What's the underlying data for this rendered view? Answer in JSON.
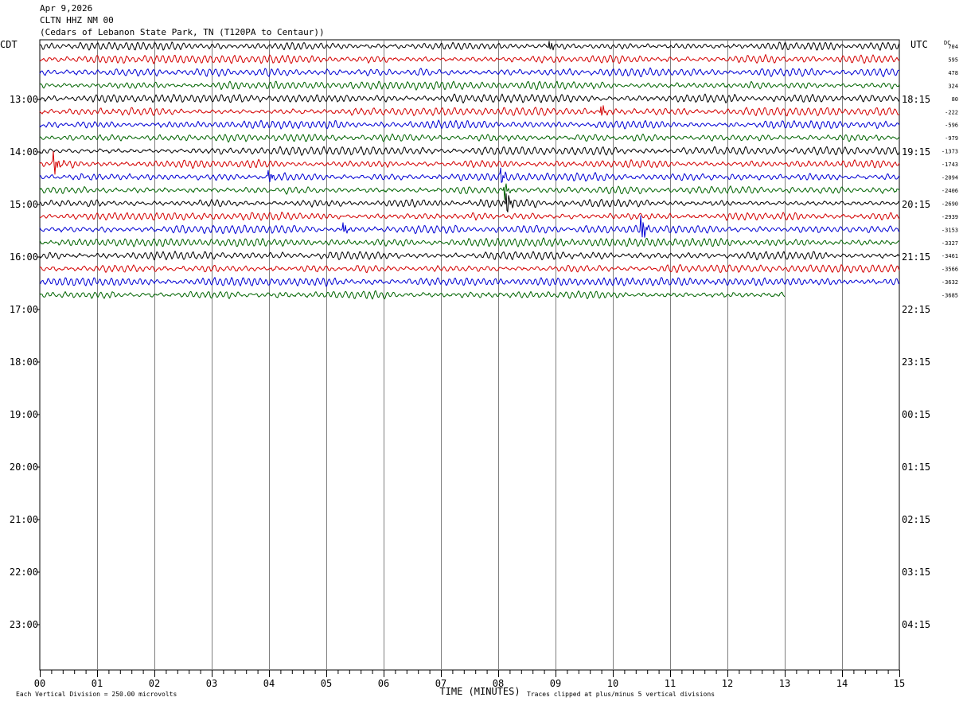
{
  "header": {
    "date": "Apr 9,2026",
    "station": "CLTN HHZ NM 00",
    "location": "(Cedars of Lebanon State Park, TN (T120PA to Centaur))"
  },
  "axis_labels": {
    "left_zone": "CDT",
    "right_zone": "UTC",
    "dc": "DC"
  },
  "footer": {
    "scale_note": "Each Vertical Division =  250.00 microvolts",
    "clip_note": "Traces clipped at plus/minus 5 vertical divisions"
  },
  "colors": {
    "trace_cycle": [
      "#000000",
      "#d40000",
      "#0000d4",
      "#006400"
    ],
    "grid": "#7f7f7f",
    "text": "#000000"
  },
  "chart_data": {
    "type": "line",
    "subtype": "seismic helicorder",
    "xlabel": "TIME (MINUTES)",
    "x_ticks": [
      "00",
      "01",
      "02",
      "03",
      "04",
      "05",
      "06",
      "07",
      "08",
      "09",
      "10",
      "11",
      "12",
      "13",
      "14",
      "15"
    ],
    "xlim": [
      0,
      15
    ],
    "grid": true,
    "left_hour_labels": [
      "13:00",
      "14:00",
      "15:00",
      "16:00",
      "17:00",
      "18:00",
      "19:00",
      "20:00",
      "21:00",
      "22:00",
      "23:00"
    ],
    "right_hour_labels": [
      "18:15",
      "19:15",
      "20:15",
      "21:15",
      "22:15",
      "23:15",
      "00:15",
      "01:15",
      "02:15",
      "03:15",
      "04:15"
    ],
    "trace_count": 20,
    "trace_interval_minutes": 15,
    "last_trace_end_minute": 13,
    "dc_offsets": [
      "704",
      "595",
      "478",
      "324",
      "80",
      "-222",
      "-596",
      "-979",
      "-1373",
      "-1743",
      "-2094",
      "-2406",
      "-2690",
      "-2939",
      "-3153",
      "-3327",
      "-3461",
      "-3566",
      "-3632",
      "-3685"
    ],
    "events": [
      {
        "trace": 9,
        "minute": 0.25,
        "amplitude": 3.5
      },
      {
        "trace": 10,
        "minute": 4.0,
        "amplitude": 2.0
      },
      {
        "trace": 10,
        "minute": 8.05,
        "amplitude": 2.5
      },
      {
        "trace": 11,
        "minute": 8.1,
        "amplitude": 3.5
      },
      {
        "trace": 12,
        "minute": 8.15,
        "amplitude": 4.0
      },
      {
        "trace": 14,
        "minute": 10.5,
        "amplitude": 4.5
      },
      {
        "trace": 14,
        "minute": 5.3,
        "amplitude": 2.0
      },
      {
        "trace": 5,
        "minute": 9.8,
        "amplitude": 2.0
      },
      {
        "trace": 0,
        "minute": 8.9,
        "amplitude": 1.8
      }
    ]
  }
}
